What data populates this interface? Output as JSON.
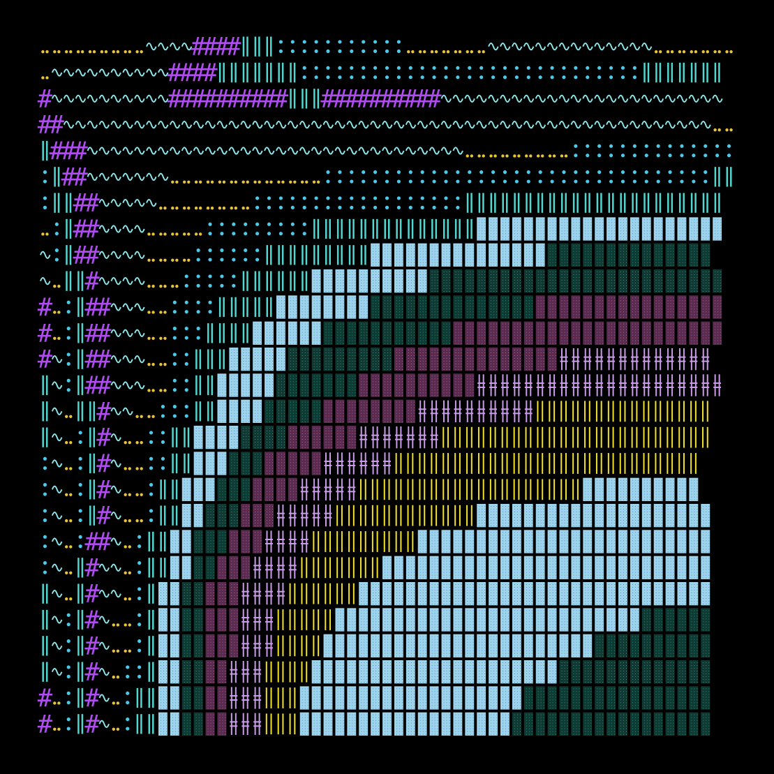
{
  "artwork": {
    "grid": {
      "cols": 36,
      "rows": 36
    },
    "background": "#000000",
    "palette": {
      ".": "#e8c23a",
      ":": "#4cc8e8",
      "~": "#8fe6ea",
      "#": "#b04df0",
      "|": "#52d6d0",
      "B": "#9dd3ec",
      "G": "#0f3a33",
      "M": "#5a2a4f",
      "+": "#c99be8",
      "Y": "#f2e12a"
    },
    "glyph_names": {
      ".": "dots",
      ":": "colons",
      "~": "tilde-wave",
      "#": "hash",
      "|": "double-bar",
      "B": "light-blue-tile",
      "G": "dark-green-tile",
      "M": "purple-tile",
      "+": "double-cross",
      "Y": "yellow-bars"
    },
    "rows": [
      ".........~~~~####|||:::::::::::.......~~~~~~~~~~~~~~.......",
      ".~~~~~~~~~~####|||||||:::::::::::::::::::::::::::::|||||||",
      "#~~~~~~~~~~##########|||##########~~~~~~~~~~~~~~~~~~~~~~~~",
      "##~~~~~~~~~~~~~~~~~~~~~~~~~~~~~~~~~~~~~~~~~~~~~~~~~~~~~~~..",
      "|###~~~~~~~~~~~~~~~~~~~~~~~~~~~~~~~~.........::::::::::::::",
      ":|##~~~~~~~.............:::::::::::::::::::::::::::::::::||",
      ":||##~~~~~........::::::::::::::::::||||||||||||||||||||||",
      ".:|##~~~~.....:::::::::||||||||||||||BBBBBBBBBBBBBBBBBBBBB",
      "~:|##~~~~....::::::|||||||||BBBBBBBBBBBBBBBGGGGGGGGGGGGGG",
      "~.||#~~~~...:::::||||||BBBBBBBBBBGGGGGGGGGGGGGGGGGGGGGGGGG",
      "#.:|##~~~..::::|||||BBBBBBBBGGGGGGGGGGGGGGMMMMMMMMMMMMMMMM",
      "#.:|##~~~..:::||||BBBBBBGGGGGGGGGGGMMMMMMMMMMMMMMMMMMMMMMM",
      "#~:|##~~~..::|||BBBBBGGGGGGGGGMMMMMMMMMMMMMM+++++++++++++",
      "|~:|##~~~..::||BBBBBGGGGGGGMMMMMMMMMM+++++++++++++++++++++",
      "|~.||#~~..:::||BBBBGGGGGMMMMMMMM++++++++++YYYYYYYYYYYYYYY",
      "|~.:|#~..::||BBBBGGGGMMMMMM+++++++YYYYYYYYYYYYYYYYYYYYYYY",
      ":~.:|#~..::||BBBGGGMMMMM++++++YYYYYYYYYYYYYYYYYYYYYYYYYY",
      ":~.:|#~..:||BBBGGGMMMM+++++YYYYYYYYYYYYYYYYYYYBBBBBBBBBB",
      ":~.:|#~..:||BBGGGMMM+++++YYYYYYYYYYYYBBBBBBBBBBBBBBBBBBBB",
      ":~.:##~.:||BBGGGMMM++++YYYYYYYYYBBBBBBBBBBBBBBBBBBBBBBBBB",
      ":~.|#~~.:||BBGGMMM++++YYYYYYYBBBBBBBBBBBBBBBBBBBBBBBBBBBB",
      "|~.|#~~.:|BBGGMMM++++YYYYYYBBBBBBBBBBBBBBBBBBBBBBBBBBBBBB",
      "|~:|#~..:|BBGGMMM+++YYYYYBBBBBBBBBBBBBBBBBBBBBBBBBBGGGGGG",
      "|~:|#~..:|BBGGMMM+++YYYYBBBBBBBBBBBBBBBBBBBBBBBGGGGGGGGGG",
      "|~:|#~.::|BBGGMM+++YYYYBBBBBBBBBBBBBBBBBBBBBGGGGGGGGGGGGG",
      "#.:|#~.:||BBGGMM+++YYYBBBBBBBBBBBBBBBBBBBGGGGGGGGGGGGGGGG",
      "#.:|#~.:||BBGGMM+++YYYBBBBBBBBBBBBBBBBBBGGGGGGGGGGGGGGGGG"
    ]
  }
}
